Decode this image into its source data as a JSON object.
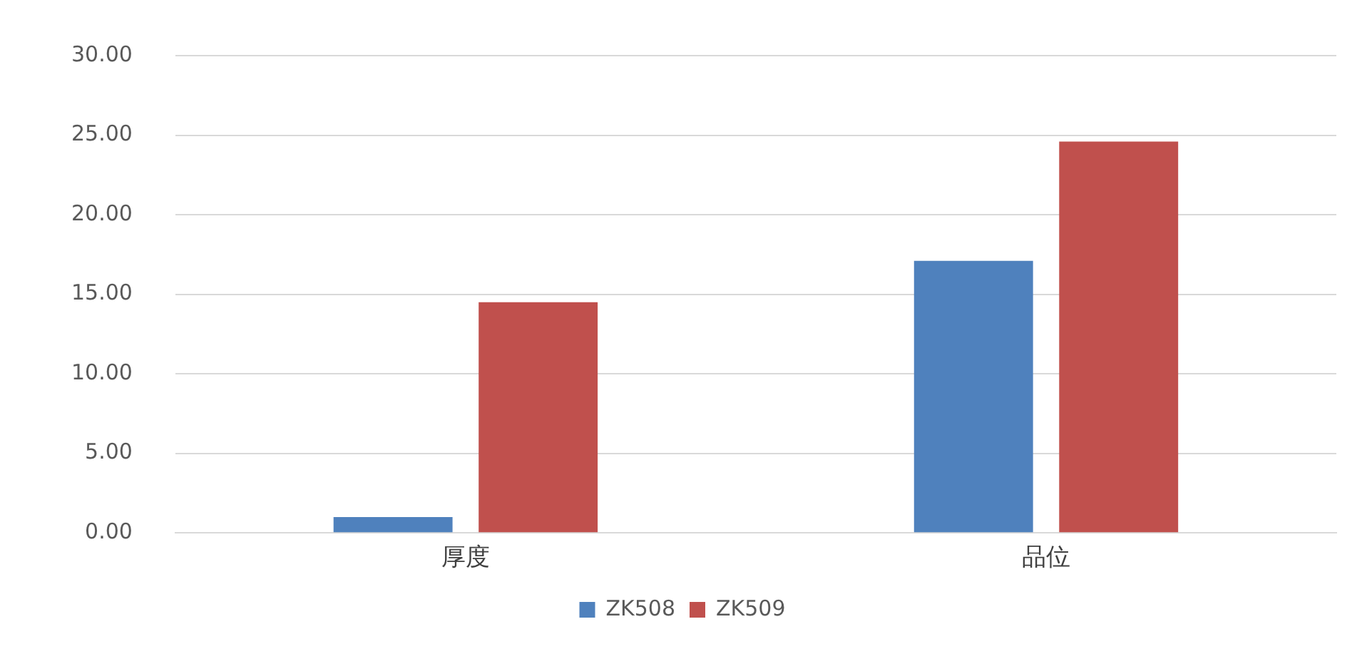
{
  "chart_data": {
    "type": "bar",
    "categories": [
      "厚度",
      "品位"
    ],
    "series": [
      {
        "name": "ZK508",
        "color": "#4f81bd",
        "values": [
          1.0,
          17.1
        ]
      },
      {
        "name": "ZK509",
        "color": "#c0504d",
        "values": [
          14.5,
          24.6
        ]
      }
    ],
    "ylim": [
      0,
      30
    ],
    "yticks": [
      {
        "value": 0,
        "label": "0.00"
      },
      {
        "value": 5,
        "label": "5.00"
      },
      {
        "value": 10,
        "label": "10.00"
      },
      {
        "value": 15,
        "label": "15.00"
      },
      {
        "value": 20,
        "label": "20.00"
      },
      {
        "value": 25,
        "label": "25.00"
      },
      {
        "value": 30,
        "label": "30.00"
      }
    ],
    "grid": "y",
    "legend": "bottom"
  }
}
